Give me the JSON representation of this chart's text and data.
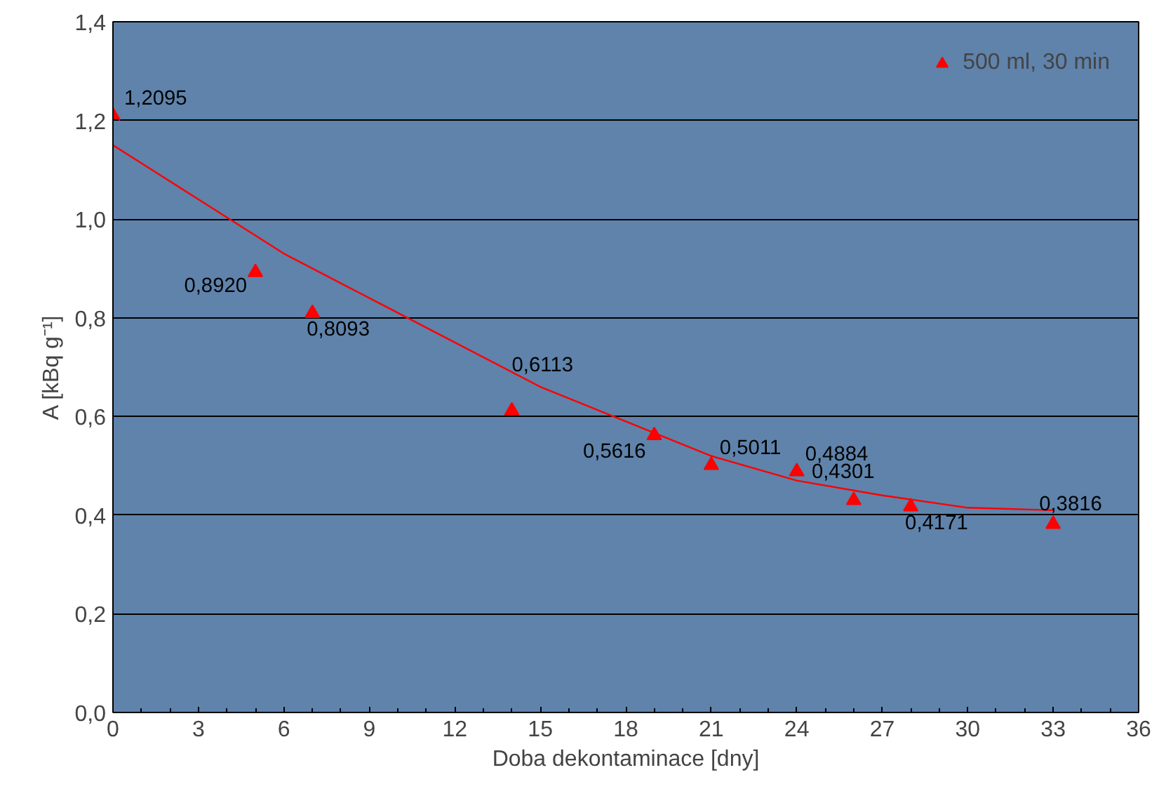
{
  "chart_data": {
    "type": "scatter",
    "xlabel": "Doba dekontaminace [dny]",
    "ylabel": "A [kBq g⁻¹]",
    "x": [
      0,
      5,
      7,
      14,
      19,
      21,
      24,
      26,
      28,
      33
    ],
    "series": [
      {
        "name": "500 ml, 30 min",
        "color": "#ff0000",
        "marker": "triangle",
        "values": [
          1.2095,
          0.892,
          0.8093,
          0.6113,
          0.5616,
          0.5011,
          0.4884,
          0.4301,
          0.4171,
          0.3816
        ],
        "value_labels": [
          "1,2095",
          "0,8920",
          "0,8093",
          "0,6113",
          "0,5616",
          "0,5011",
          "0,4884",
          "0,4301",
          "0,4171",
          "0,3816"
        ]
      },
      {
        "type": "line",
        "color": "#ff0000",
        "x": [
          0,
          3,
          6,
          9,
          12,
          15,
          18,
          21,
          24,
          27,
          30,
          33
        ],
        "values": [
          1.15,
          1.04,
          0.93,
          0.84,
          0.75,
          0.66,
          0.59,
          0.52,
          0.47,
          0.44,
          0.415,
          0.41
        ]
      }
    ],
    "xlim": [
      0,
      36
    ],
    "xticks": [
      0,
      3,
      6,
      9,
      12,
      15,
      18,
      21,
      24,
      27,
      30,
      33,
      36
    ],
    "ylim": [
      0,
      1.4
    ],
    "yticks": [
      {
        "value": 0,
        "label": "0,0"
      },
      {
        "value": 0.2,
        "label": "0,2"
      },
      {
        "value": 0.4,
        "label": "0,4"
      },
      {
        "value": 0.6,
        "label": "0,6"
      },
      {
        "value": 0.8,
        "label": "0,8"
      },
      {
        "value": 1.0,
        "label": "1,0"
      },
      {
        "value": 1.2,
        "label": "1,2"
      },
      {
        "value": 1.4,
        "label": "1,4"
      }
    ],
    "grid": "y",
    "legend": "top right"
  }
}
